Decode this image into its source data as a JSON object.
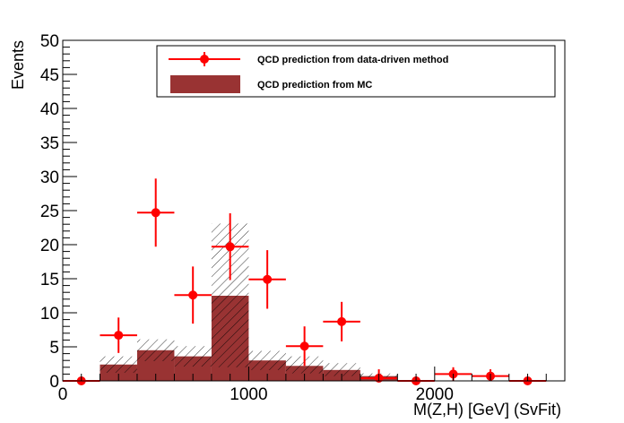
{
  "chart_data": {
    "type": "bar",
    "xlabel": "M(Z,H) [GeV] (SvFit)",
    "ylabel": "Events",
    "xlim": [
      0,
      2700
    ],
    "ylim": [
      0,
      50
    ],
    "x_ticks": [
      "0",
      "1000",
      "2000"
    ],
    "y_ticks": [
      "0",
      "5",
      "10",
      "15",
      "20",
      "25",
      "30",
      "35",
      "40",
      "45",
      "50"
    ],
    "grid": false,
    "legend_position": "top-right",
    "legend": [
      {
        "label": "QCD prediction from data-driven method",
        "style": "marker-errorbar",
        "color": "#ff0000"
      },
      {
        "label": "QCD prediction from MC",
        "style": "filled",
        "color": "#993333"
      }
    ],
    "series": [
      {
        "name": "QCD prediction from MC",
        "kind": "histogram",
        "color": "#993333",
        "bin_edges": [
          200,
          400,
          600,
          800,
          1000,
          1200,
          1400,
          1600,
          1800
        ],
        "values": [
          2.4,
          4.5,
          3.6,
          12.5,
          3.0,
          2.2,
          1.6,
          0.7
        ],
        "uncertainty_up": [
          3.6,
          6.1,
          5.1,
          23.1,
          4.4,
          3.6,
          2.6,
          1.1
        ],
        "uncertainty_down": [
          1.2,
          2.9,
          2.1,
          2.0,
          1.6,
          1.1,
          0.7,
          0.3
        ]
      },
      {
        "name": "QCD prediction from data-driven method",
        "kind": "errorbar",
        "color": "#ff0000",
        "x": [
          100,
          300,
          500,
          700,
          900,
          1100,
          1300,
          1500,
          1700,
          1900,
          2100,
          2300,
          2500
        ],
        "y": [
          0,
          6.7,
          24.7,
          12.6,
          19.7,
          14.9,
          5.1,
          8.7,
          0.4,
          0,
          1.0,
          0.7,
          0
        ],
        "x_err": 100,
        "y_err": [
          0,
          2.6,
          5.0,
          4.2,
          4.9,
          4.3,
          2.9,
          2.9,
          1.3,
          0,
          1.0,
          1.0,
          0
        ]
      }
    ]
  }
}
